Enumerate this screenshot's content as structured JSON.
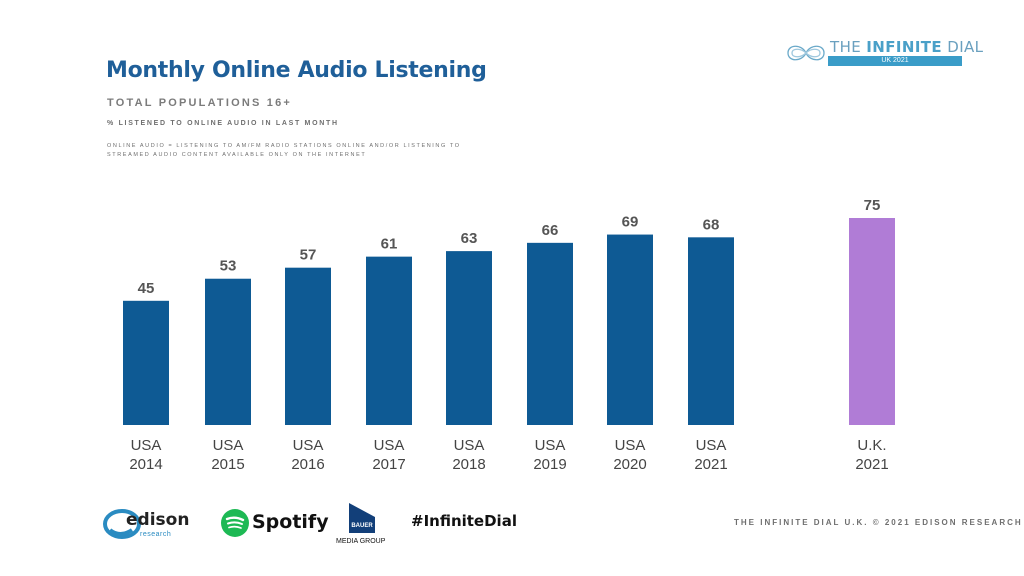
{
  "header": {
    "title": "Monthly Online Audio Listening",
    "subtitle": "TOTAL POPULATIONS 16+",
    "measure_note": "% LISTENED TO ONLINE AUDIO IN LAST MONTH",
    "definition_note": "ONLINE AUDIO = LISTENING TO AM/FM RADIO STATIONS ONLINE AND/OR LISTENING TO STREAMED AUDIO CONTENT AVAILABLE ONLY ON THE INTERNET"
  },
  "brand": {
    "name_prefix": "THE ",
    "name_bold": "INFINITE",
    "name_suffix": " DIAL",
    "edition": "UK 2021",
    "accent_color": "#3a9cc8"
  },
  "chart_data": {
    "type": "bar",
    "categories": [
      [
        "USA",
        "2014"
      ],
      [
        "USA",
        "2015"
      ],
      [
        "USA",
        "2016"
      ],
      [
        "USA",
        "2017"
      ],
      [
        "USA",
        "2018"
      ],
      [
        "USA",
        "2019"
      ],
      [
        "USA",
        "2020"
      ],
      [
        "USA",
        "2021"
      ],
      [
        "U.K.",
        "2021"
      ]
    ],
    "values": [
      45,
      53,
      57,
      61,
      63,
      66,
      69,
      68,
      75
    ],
    "colors": [
      "#0e5a94",
      "#0e5a94",
      "#0e5a94",
      "#0e5a94",
      "#0e5a94",
      "#0e5a94",
      "#0e5a94",
      "#0e5a94",
      "#b07cd6"
    ],
    "title": "Monthly Online Audio Listening",
    "xlabel": "",
    "ylabel": "",
    "ylim": [
      0,
      100
    ],
    "grid": false,
    "legend": "none",
    "data_labels": true
  },
  "footer": {
    "edison": "edison",
    "edison_sub": "research",
    "spotify": "Spotify",
    "bauer": "BAUER",
    "bauer_sub": "MEDIA GROUP",
    "hashtag": "#InfiniteDial",
    "copyright": "THE INFINITE DIAL U.K. © 2021 EDISON RESEARCH"
  }
}
